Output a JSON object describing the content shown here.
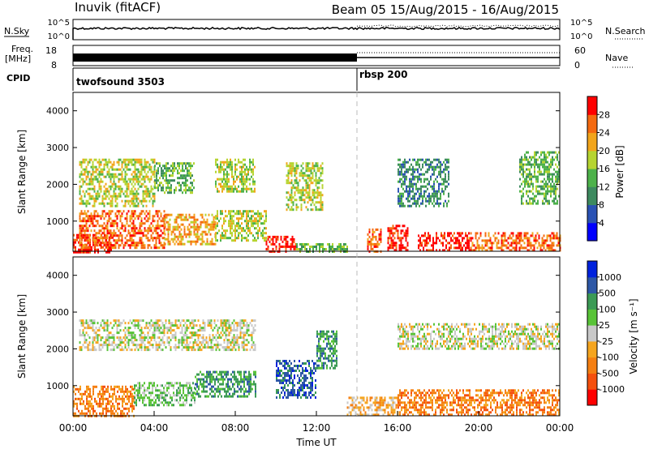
{
  "header": {
    "station": "Inuvik (fitACF)",
    "beam_date": "Beam 05  15/Aug/2015 - 16/Aug/2015"
  },
  "strip_panels": {
    "nsky_label": "N.Sky",
    "nsearch_label": "N.Search",
    "count_ticks": [
      "10^5",
      "10^0"
    ],
    "freq_label_1": "Freq.",
    "freq_label_2": "[MHz]",
    "freq_ticks": [
      "18",
      "8"
    ],
    "nave_label": "Nave",
    "nave_ticks": [
      "60",
      "0"
    ],
    "cpid_label": "CPID",
    "cpid_segments": [
      {
        "name": "twofsound 3503",
        "start_hour": 0,
        "end_hour": 14
      },
      {
        "name": "rbsp 200",
        "start_hour": 14,
        "end_hour": 24
      }
    ]
  },
  "chart_data": [
    {
      "type": "heatmap",
      "title": "",
      "xlabel": "",
      "ylabel": "Slant Range [km]",
      "x_range_hours": [
        0,
        24
      ],
      "ylim": [
        180,
        4500
      ],
      "yticks": [
        "4000",
        "3000",
        "2000",
        "1000"
      ],
      "colorbar": {
        "label": "Power [dB]",
        "ticks": [
          "28",
          "24",
          "20",
          "16",
          "12",
          "8",
          "4"
        ],
        "colors": [
          "#0000ff",
          "#2a52b4",
          "#3d8a5f",
          "#4db24a",
          "#b6d431",
          "#f2a51b",
          "#f56a10",
          "#ff0000"
        ]
      },
      "echo_regions": [
        {
          "h0": 0.0,
          "h1": 2.0,
          "r0": 180,
          "r1": 650,
          "level": 7
        },
        {
          "h0": 0.3,
          "h1": 4.5,
          "r0": 300,
          "r1": 1300,
          "level": 6
        },
        {
          "h0": 4.5,
          "h1": 7.0,
          "r0": 400,
          "r1": 1200,
          "level": 5
        },
        {
          "h0": 7.0,
          "h1": 9.5,
          "r0": 500,
          "r1": 1300,
          "level": 4
        },
        {
          "h0": 9.5,
          "h1": 11.0,
          "r0": 180,
          "r1": 600,
          "level": 7
        },
        {
          "h0": 11.0,
          "h1": 13.5,
          "r0": 200,
          "r1": 400,
          "level": 3
        },
        {
          "h0": 10.5,
          "h1": 12.3,
          "r0": 1300,
          "r1": 2600,
          "level": 4
        },
        {
          "h0": 0.3,
          "h1": 4.0,
          "r0": 1400,
          "r1": 2700,
          "level": 4
        },
        {
          "h0": 4.0,
          "h1": 6.0,
          "r0": 1800,
          "r1": 2600,
          "level": 3
        },
        {
          "h0": 7.0,
          "h1": 9.0,
          "r0": 1800,
          "r1": 2700,
          "level": 4
        },
        {
          "h0": 14.5,
          "h1": 15.2,
          "r0": 180,
          "r1": 800,
          "level": 6
        },
        {
          "h0": 15.5,
          "h1": 16.5,
          "r0": 180,
          "r1": 900,
          "level": 7
        },
        {
          "h0": 17.0,
          "h1": 19.5,
          "r0": 180,
          "r1": 700,
          "level": 7
        },
        {
          "h0": 19.5,
          "h1": 24.0,
          "r0": 180,
          "r1": 700,
          "level": 6
        },
        {
          "h0": 16.0,
          "h1": 18.5,
          "r0": 1400,
          "r1": 2700,
          "level": 2
        },
        {
          "h0": 22.0,
          "h1": 24.0,
          "r0": 1500,
          "r1": 2900,
          "level": 3
        }
      ]
    },
    {
      "type": "heatmap",
      "title": "",
      "xlabel": "Time UT",
      "ylabel": "Slant Range [km]",
      "x_range_hours": [
        0,
        24
      ],
      "xticks": [
        "00:00",
        "04:00",
        "08:00",
        "12:00",
        "16:00",
        "20:00",
        "00:00"
      ],
      "ylim": [
        180,
        4500
      ],
      "yticks": [
        "4000",
        "3000",
        "2000",
        "1000"
      ],
      "colorbar": {
        "label": "Velocity [m s⁻¹]",
        "ticks": [
          "1000",
          "500",
          "100",
          "25",
          "-25",
          "-100",
          "-500",
          "-1000"
        ],
        "colors": [
          "#ff0000",
          "#f5500d",
          "#f57f12",
          "#f5a51f",
          "#c8c8c8",
          "#58c337",
          "#3b9a55",
          "#2d57a6",
          "#0022dd"
        ]
      },
      "echo_regions": [
        {
          "h0": 0.0,
          "h1": 3.0,
          "r0": 180,
          "r1": 1000,
          "level": 2
        },
        {
          "h0": 3.0,
          "h1": 6.0,
          "r0": 500,
          "r1": 1100,
          "level": 5
        },
        {
          "h0": 6.0,
          "h1": 9.0,
          "r0": 700,
          "r1": 1400,
          "level": 6
        },
        {
          "h0": 0.3,
          "h1": 9.0,
          "r0": 2000,
          "r1": 2800,
          "level": 4
        },
        {
          "h0": 10.0,
          "h1": 12.0,
          "r0": 700,
          "r1": 1700,
          "level": 7
        },
        {
          "h0": 12.0,
          "h1": 13.0,
          "r0": 1500,
          "r1": 2500,
          "level": 6
        },
        {
          "h0": 13.5,
          "h1": 16.0,
          "r0": 180,
          "r1": 700,
          "level": 3
        },
        {
          "h0": 16.0,
          "h1": 24.0,
          "r0": 180,
          "r1": 900,
          "level": 2
        },
        {
          "h0": 16.0,
          "h1": 24.0,
          "r0": 2000,
          "r1": 2700,
          "level": 4
        }
      ]
    }
  ]
}
